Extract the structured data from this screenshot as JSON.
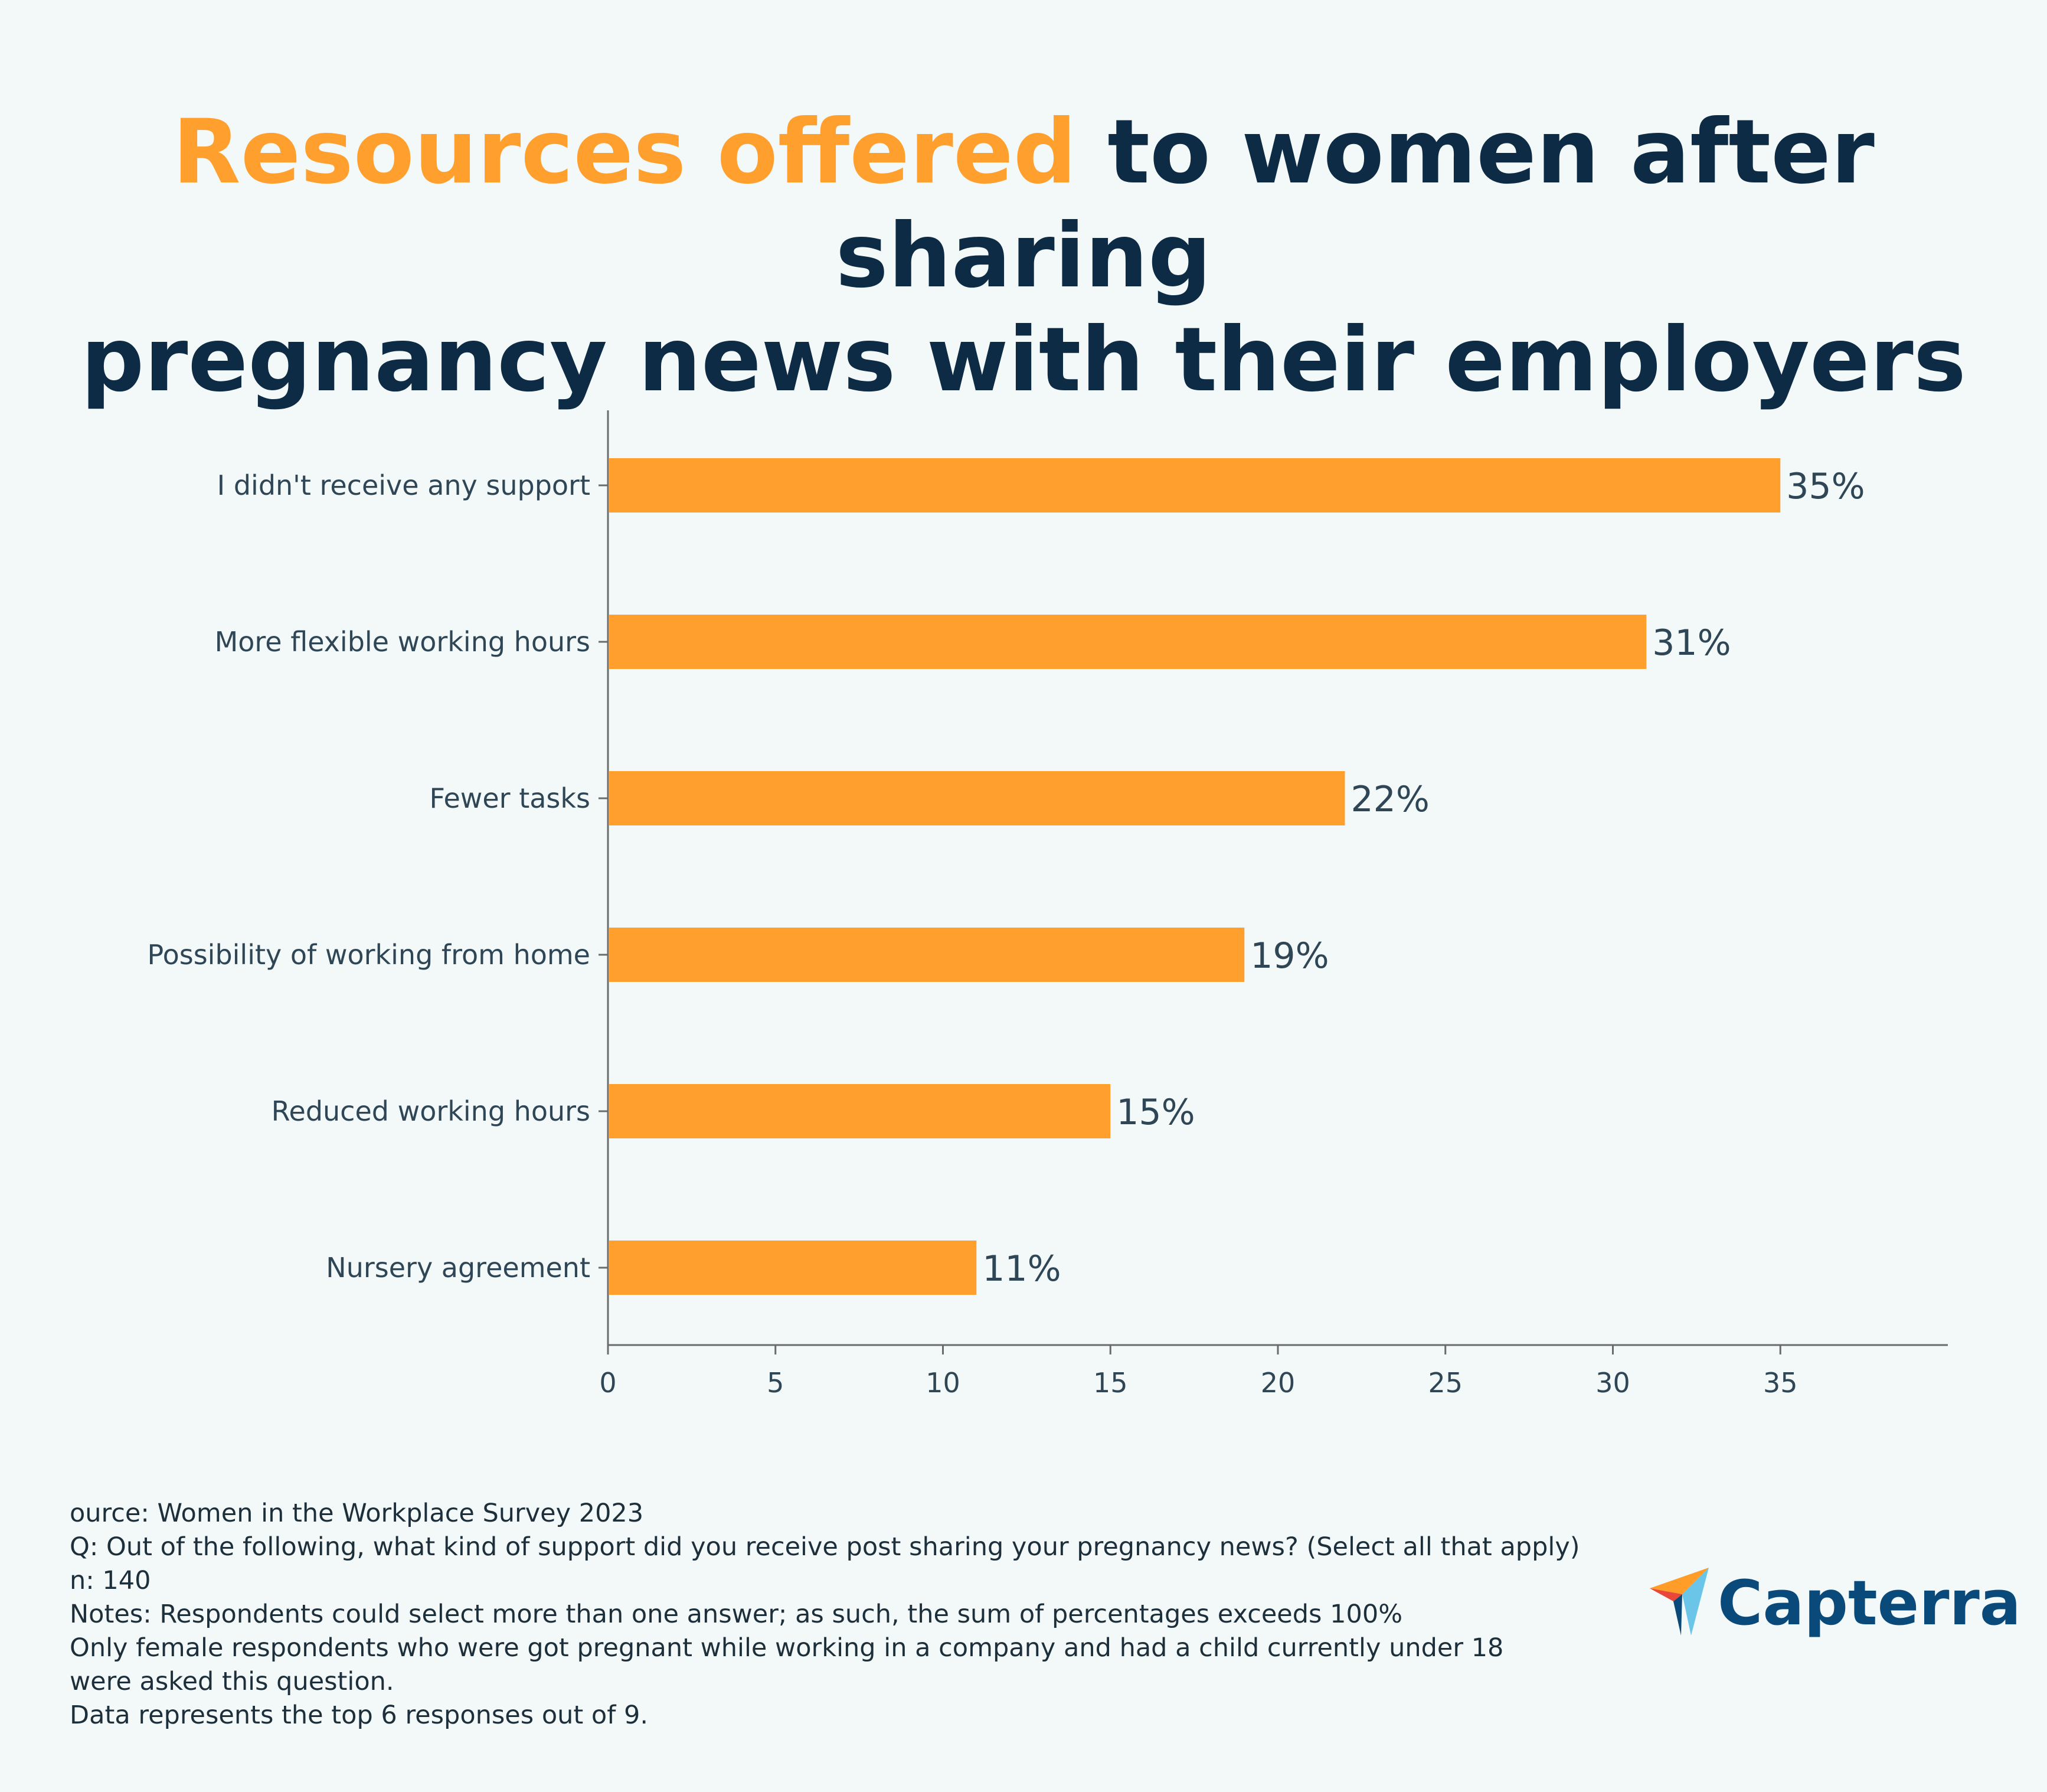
{
  "header": {
    "title_accent": "Resources offered",
    "title_rest_line1": " to women after sharing",
    "title_line2": "pregnancy news with their employers"
  },
  "colors": {
    "accent": "#ff9f2d",
    "text_dark": "#0d2b45",
    "background": "#f3f8f8"
  },
  "chart_data": {
    "type": "bar",
    "orientation": "horizontal",
    "categories": [
      "I didn't receive any support",
      "More flexible working hours",
      "Fewer tasks",
      "Possibility of working from home",
      "Reduced working hours",
      "Nursery agreement"
    ],
    "values": [
      35,
      31,
      22,
      19,
      15,
      11
    ],
    "data_labels": [
      "35%",
      "31%",
      "22%",
      "19%",
      "15%",
      "11%"
    ],
    "x_ticks": [
      "0",
      "5",
      "10",
      "15",
      "20",
      "25",
      "30",
      "35"
    ],
    "xlim": [
      0,
      40
    ],
    "grid": false,
    "bar_color": "#ff9f2d"
  },
  "footer": {
    "lines": [
      "ource: Women in the Workplace Survey 2023",
      "Q: Out of the following, what kind of support did you receive post sharing your pregnancy news? (Select all that apply)",
      "n: 140",
      "Notes: Respondents could select more than one answer; as such, the sum of percentages exceeds 100%",
      "Only female respondents who were got pregnant while working in a company and had a child currently under 18",
      "were asked this question.",
      "Data represents the top 6 responses out of 9."
    ]
  },
  "logo": {
    "text": "Capterra",
    "icon": "capterra-arrow-icon"
  }
}
